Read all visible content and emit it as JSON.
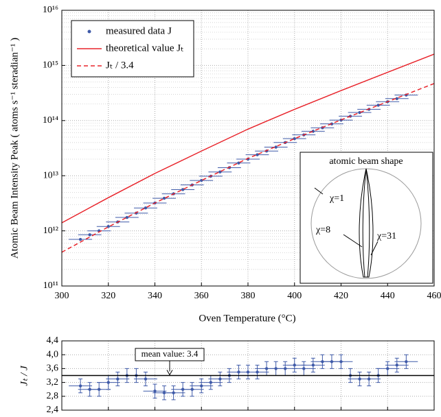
{
  "chart_data": [
    {
      "type": "scatter",
      "xlabel": "Oven Temperature (°C)",
      "ylabel": "Atomic Beam Intensity Peak ( atoms s⁻¹ steradian⁻¹ )",
      "xlim": [
        300,
        460
      ],
      "xticks": [
        300,
        320,
        340,
        360,
        380,
        400,
        420,
        440,
        460
      ],
      "ylim": [
        100000000000.0,
        1e+16
      ],
      "log_y": true,
      "grid": true,
      "legend": "upper left",
      "yticks": [
        {
          "value": 100000000000.0,
          "label": "10¹¹"
        },
        {
          "value": 1000000000000.0,
          "label": "10¹²"
        },
        {
          "value": 10000000000000.0,
          "label": "10¹³"
        },
        {
          "value": 100000000000000.0,
          "label": "10¹⁴"
        },
        {
          "value": 1000000000000000.0,
          "label": "10¹⁵"
        },
        {
          "value": 1e+16,
          "label": "10¹⁶"
        }
      ],
      "series": [
        {
          "name": "measured data J",
          "style": "points",
          "color": "#3f5aa8",
          "x_error": 5,
          "x": [
            308,
            312,
            316,
            320,
            324,
            328,
            332,
            336,
            340,
            344,
            348,
            352,
            356,
            360,
            364,
            368,
            372,
            376,
            380,
            384,
            388,
            392,
            396,
            400,
            404,
            408,
            412,
            416,
            420,
            424,
            428,
            432,
            436,
            440,
            444,
            448
          ],
          "values": [
            700000000000.0,
            850000000000.0,
            1000000000000.0,
            1200000000000.0,
            1450000000000.0,
            1750000000000.0,
            2100000000000.0,
            2600000000000.0,
            3200000000000.0,
            3900000000000.0,
            4700000000000.0,
            5600000000000.0,
            6800000000000.0,
            8200000000000.0,
            9800000000000.0,
            11700000000000.0,
            14000000000000.0,
            17000000000000.0,
            20000000000000.0,
            24000000000000.0,
            28000000000000.0,
            33000000000000.0,
            40000000000000.0,
            47000000000000.0,
            55000000000000.0,
            64000000000000.0,
            74000000000000.0,
            87000000000000.0,
            102000000000000.0,
            120000000000000.0,
            140000000000000.0,
            160000000000000.0,
            190000000000000.0,
            220000000000000.0,
            250000000000000.0,
            290000000000000.0
          ]
        },
        {
          "name": "theoretical value Jₜ",
          "style": "solid",
          "color": "#e8232a",
          "x": [
            300,
            320,
            340,
            360,
            380,
            400,
            420,
            440,
            460
          ],
          "values": [
            1400000000000.0,
            4000000000000.0,
            11000000000000.0,
            28000000000000.0,
            70000000000000.0,
            160000000000000.0,
            350000000000000.0,
            750000000000000.0,
            1600000000000000.0
          ]
        },
        {
          "name": "Jₜ / 3.4",
          "style": "dashed",
          "color": "#e8232a",
          "x": [
            300,
            320,
            340,
            360,
            380,
            400,
            420,
            440,
            460
          ],
          "values": [
            410000000000.0,
            1180000000000.0,
            3200000000000.0,
            8200000000000.0,
            20600000000000.0,
            47000000000000.0,
            103000000000000.0,
            220000000000000.0,
            470000000000000.0
          ]
        }
      ]
    },
    {
      "type": "scatter",
      "ylabel": "Jₜ / J",
      "xlim": [
        300,
        460
      ],
      "xticks": [
        300,
        320,
        340,
        360,
        380,
        400,
        420,
        440,
        460
      ],
      "ylim": [
        2.4,
        4.4
      ],
      "grid": true,
      "yticks": [
        {
          "value": 2.4,
          "label": "2,4"
        },
        {
          "value": 2.8,
          "label": "2,8"
        },
        {
          "value": 3.2,
          "label": "3,2"
        },
        {
          "value": 3.6,
          "label": "3,6"
        },
        {
          "value": 4.0,
          "label": "4,0"
        },
        {
          "value": 4.4,
          "label": "4,4"
        }
      ],
      "mean": 3.4,
      "annotation": "mean value: 3.4",
      "series": [
        {
          "color": "#3f5aa8",
          "x_error": 5,
          "y_error": 0.2,
          "x": [
            308,
            312,
            316,
            320,
            324,
            328,
            332,
            336,
            340,
            344,
            348,
            352,
            356,
            360,
            364,
            368,
            372,
            376,
            380,
            384,
            388,
            392,
            396,
            400,
            404,
            408,
            412,
            416,
            420,
            424,
            428,
            432,
            436,
            440,
            444,
            448
          ],
          "values": [
            3.1,
            3.0,
            3.0,
            3.2,
            3.3,
            3.4,
            3.4,
            3.3,
            2.95,
            2.9,
            2.9,
            3.0,
            3.0,
            3.1,
            3.2,
            3.3,
            3.4,
            3.5,
            3.5,
            3.5,
            3.6,
            3.6,
            3.6,
            3.7,
            3.6,
            3.7,
            3.8,
            3.8,
            3.8,
            3.4,
            3.3,
            3.3,
            3.4,
            3.6,
            3.7,
            3.8
          ]
        }
      ]
    }
  ],
  "inset": {
    "title": "atomic beam shape",
    "labels": [
      "χ=1",
      "χ=8",
      "χ=31"
    ]
  }
}
